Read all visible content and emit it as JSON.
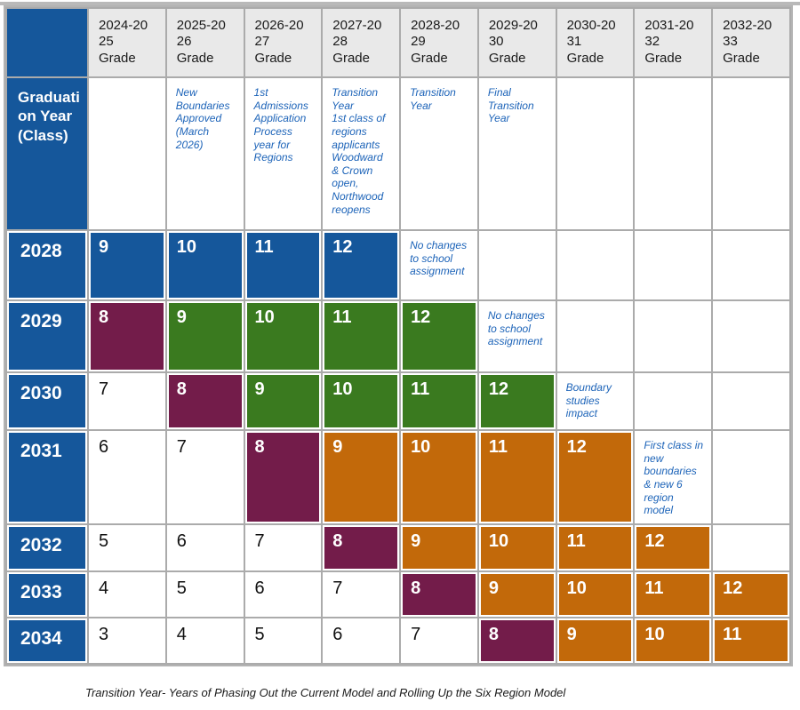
{
  "colors": {
    "blue": "#15579B",
    "green": "#3A7A1F",
    "maroon": "#731C4A",
    "orange": "#C2690A",
    "header_bg": "#E9E9E9",
    "note_text": "#1C63B8",
    "grid": "#ABABAB"
  },
  "table": {
    "corner_label": "",
    "row_header_label": "Graduati\non Year\n(Class)",
    "columns": [
      {
        "label": "2024-20\n25\nGrade",
        "note": ""
      },
      {
        "label": "2025-20\n26\nGrade",
        "note": "New Boundaries Approved (March 2026)"
      },
      {
        "label": "2026-20\n27\nGrade",
        "note": "1st Admissions Application Process year for Regions"
      },
      {
        "label": "2027-20\n28\nGrade",
        "note": "Transition Year\n1st class of regions applicants Woodward & Crown open, Northwood reopens"
      },
      {
        "label": "2028-20\n29\nGrade",
        "note": "Transition Year"
      },
      {
        "label": "2029-20\n30\nGrade",
        "note": "Final Transition Year"
      },
      {
        "label": "2030-20\n31\nGrade",
        "note": ""
      },
      {
        "label": "2031-20\n32\nGrade",
        "note": ""
      },
      {
        "label": "2032-20\n33\nGrade",
        "note": ""
      }
    ],
    "rows": [
      {
        "year": "2028",
        "cells": [
          {
            "t": "9",
            "c": "blue"
          },
          {
            "t": "10",
            "c": "blue"
          },
          {
            "t": "11",
            "c": "blue"
          },
          {
            "t": "12",
            "c": "blue"
          },
          {
            "t": "No changes to school assignment",
            "c": "note"
          },
          {
            "t": "",
            "c": "empty"
          },
          {
            "t": "",
            "c": "empty"
          },
          {
            "t": "",
            "c": "empty"
          },
          {
            "t": "",
            "c": "empty"
          }
        ]
      },
      {
        "year": "2029",
        "cells": [
          {
            "t": "8",
            "c": "maroon"
          },
          {
            "t": "9",
            "c": "green"
          },
          {
            "t": "10",
            "c": "green"
          },
          {
            "t": "11",
            "c": "green"
          },
          {
            "t": "12",
            "c": "green"
          },
          {
            "t": "No changes to school assignment",
            "c": "note"
          },
          {
            "t": "",
            "c": "empty"
          },
          {
            "t": "",
            "c": "empty"
          },
          {
            "t": "",
            "c": "empty"
          }
        ]
      },
      {
        "year": "2030",
        "cells": [
          {
            "t": "7",
            "c": "plain"
          },
          {
            "t": "8",
            "c": "maroon"
          },
          {
            "t": "9",
            "c": "green"
          },
          {
            "t": "10",
            "c": "green"
          },
          {
            "t": "11",
            "c": "green"
          },
          {
            "t": "12",
            "c": "green"
          },
          {
            "t": "Boundary studies impact",
            "c": "note"
          },
          {
            "t": "",
            "c": "empty"
          },
          {
            "t": "",
            "c": "empty"
          }
        ]
      },
      {
        "year": "2031",
        "cells": [
          {
            "t": "6",
            "c": "plain"
          },
          {
            "t": "7",
            "c": "plain"
          },
          {
            "t": "8",
            "c": "maroon"
          },
          {
            "t": "9",
            "c": "orange"
          },
          {
            "t": "10",
            "c": "orange"
          },
          {
            "t": "11",
            "c": "orange"
          },
          {
            "t": "12",
            "c": "orange"
          },
          {
            "t": "First class in new boundaries & new 6 region model",
            "c": "note"
          },
          {
            "t": "",
            "c": "empty"
          }
        ]
      },
      {
        "year": "2032",
        "cells": [
          {
            "t": "5",
            "c": "plain"
          },
          {
            "t": "6",
            "c": "plain"
          },
          {
            "t": "7",
            "c": "plain"
          },
          {
            "t": "8",
            "c": "maroon"
          },
          {
            "t": "9",
            "c": "orange"
          },
          {
            "t": "10",
            "c": "orange"
          },
          {
            "t": "11",
            "c": "orange"
          },
          {
            "t": "12",
            "c": "orange"
          },
          {
            "t": "",
            "c": "empty"
          }
        ]
      },
      {
        "year": "2033",
        "cells": [
          {
            "t": "4",
            "c": "plain"
          },
          {
            "t": "5",
            "c": "plain"
          },
          {
            "t": "6",
            "c": "plain"
          },
          {
            "t": "7",
            "c": "plain"
          },
          {
            "t": "8",
            "c": "maroon"
          },
          {
            "t": "9",
            "c": "orange"
          },
          {
            "t": "10",
            "c": "orange"
          },
          {
            "t": "11",
            "c": "orange"
          },
          {
            "t": "12",
            "c": "orange"
          }
        ]
      },
      {
        "year": "2034",
        "cells": [
          {
            "t": "3",
            "c": "plain"
          },
          {
            "t": "4",
            "c": "plain"
          },
          {
            "t": "5",
            "c": "plain"
          },
          {
            "t": "6",
            "c": "plain"
          },
          {
            "t": "7",
            "c": "plain"
          },
          {
            "t": "8",
            "c": "maroon"
          },
          {
            "t": "9",
            "c": "orange"
          },
          {
            "t": "10",
            "c": "orange"
          },
          {
            "t": "11",
            "c": "orange"
          }
        ]
      }
    ],
    "footer": "Transition Year- Years of Phasing Out the Current Model and Rolling Up the Six Region Model"
  }
}
